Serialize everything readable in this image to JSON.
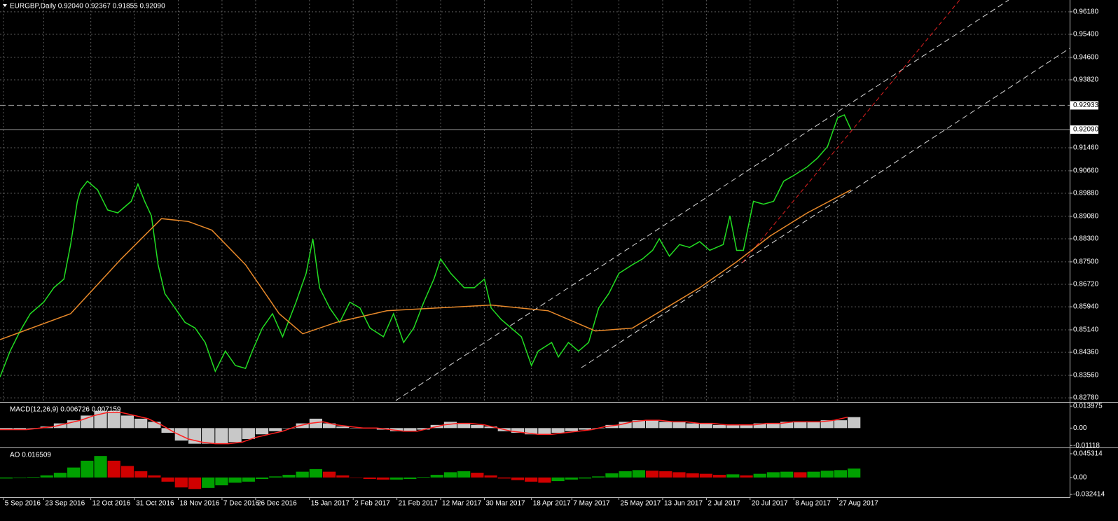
{
  "chart_data": [
    {
      "type": "line",
      "title": "EURGBP,Daily  0.92040 0.92367 0.91855 0.92090",
      "xlim": [
        0,
        318
      ],
      "ylim": [
        0.8266,
        0.9659
      ],
      "grid": true,
      "xticks": [
        {
          "value": 1,
          "label": "5 Sep 2016"
        },
        {
          "value": 13,
          "label": "23 Sep 2016"
        },
        {
          "value": 27,
          "label": "12 Oct 2016"
        },
        {
          "value": 40,
          "label": "31 Oct 2016"
        },
        {
          "value": 53,
          "label": "18 Nov 2016"
        },
        {
          "value": 66,
          "label": "7 Dec 2016"
        },
        {
          "value": 76,
          "label": "26 Dec 2016"
        },
        {
          "value": 92,
          "label": "15 Jan 2017"
        },
        {
          "value": 105,
          "label": "2 Feb 2017"
        },
        {
          "value": 118,
          "label": "21 Feb 2017"
        },
        {
          "value": 131,
          "label": "12 Mar 2017"
        },
        {
          "value": 144,
          "label": "30 Mar 2017"
        },
        {
          "value": 158,
          "label": "18 Apr 2017"
        },
        {
          "value": 170,
          "label": "7 May 2017"
        },
        {
          "value": 184,
          "label": "25 May 2017"
        },
        {
          "value": 197,
          "label": "13 Jun 2017"
        },
        {
          "value": 210,
          "label": "2 Jul 2017"
        },
        {
          "value": 223,
          "label": "20 Jul 2017"
        },
        {
          "value": 236,
          "label": "8 Aug 2017"
        },
        {
          "value": 249,
          "label": "27 Aug 2017"
        }
      ],
      "yticks": [
        {
          "value": 0.9618,
          "label": "0.96180"
        },
        {
          "value": 0.954,
          "label": "0.95400"
        },
        {
          "value": 0.946,
          "label": "0.94600"
        },
        {
          "value": 0.9382,
          "label": "0.93820"
        },
        {
          "value": 0.9146,
          "label": "0.91460"
        },
        {
          "value": 0.9066,
          "label": "0.90660"
        },
        {
          "value": 0.8988,
          "label": "0.89880"
        },
        {
          "value": 0.8908,
          "label": "0.89080"
        },
        {
          "value": 0.883,
          "label": "0.88300"
        },
        {
          "value": 0.875,
          "label": "0.87500"
        },
        {
          "value": 0.8672,
          "label": "0.86720"
        },
        {
          "value": 0.8594,
          "label": "0.85940"
        },
        {
          "value": 0.8514,
          "label": "0.85140"
        },
        {
          "value": 0.8436,
          "label": "0.84360"
        },
        {
          "value": 0.8356,
          "label": "0.83560"
        },
        {
          "value": 0.8278,
          "label": "0.82780"
        }
      ],
      "hlines": [
        {
          "value": 0.92933,
          "style": "dashed"
        },
        {
          "value": 0.9209,
          "label": "0.92090",
          "style": "solid"
        }
      ],
      "series": [
        {
          "type": "line",
          "color": "#22dd22",
          "x": [
            0,
            3,
            6,
            9,
            13,
            16,
            19,
            21,
            23,
            24,
            26,
            29,
            32,
            35,
            39,
            41,
            43,
            45,
            47,
            49,
            52,
            55,
            58,
            61,
            64,
            67,
            70,
            73,
            75,
            78,
            81,
            84,
            88,
            91,
            93,
            95,
            98,
            101,
            104,
            107,
            110,
            114,
            117,
            120,
            123,
            126,
            129,
            131,
            134,
            138,
            141,
            144,
            146,
            149,
            152,
            155,
            158,
            160,
            164,
            166,
            169,
            172,
            175,
            178,
            181,
            184,
            188,
            191,
            194,
            196,
            199,
            202,
            205,
            208,
            211,
            215,
            217,
            219,
            221,
            224,
            227,
            230,
            233,
            236,
            240,
            243,
            246,
            249,
            251,
            253
          ],
          "values": [
            0.835,
            0.844,
            0.851,
            0.857,
            0.861,
            0.866,
            0.869,
            0.881,
            0.896,
            0.9,
            0.903,
            0.9,
            0.893,
            0.892,
            0.896,
            0.902,
            0.896,
            0.891,
            0.874,
            0.864,
            0.859,
            0.854,
            0.852,
            0.847,
            0.837,
            0.844,
            0.839,
            0.838,
            0.844,
            0.852,
            0.857,
            0.849,
            0.861,
            0.871,
            0.883,
            0.866,
            0.859,
            0.854,
            0.861,
            0.859,
            0.852,
            0.849,
            0.857,
            0.847,
            0.852,
            0.861,
            0.869,
            0.876,
            0.871,
            0.866,
            0.866,
            0.869,
            0.859,
            0.855,
            0.852,
            0.849,
            0.839,
            0.844,
            0.847,
            0.842,
            0.847,
            0.844,
            0.847,
            0.859,
            0.864,
            0.871,
            0.874,
            0.876,
            0.879,
            0.883,
            0.877,
            0.881,
            0.88,
            0.882,
            0.879,
            0.881,
            0.891,
            0.879,
            0.879,
            0.896,
            0.895,
            0.896,
            0.903,
            0.905,
            0.908,
            0.911,
            0.915,
            0.925,
            0.926,
            0.9209
          ]
        },
        {
          "type": "line",
          "color": "#e8892a",
          "x": [
            0,
            21,
            36,
            48,
            56,
            63,
            73,
            83,
            90,
            100,
            115,
            146,
            163,
            177,
            188,
            198,
            208,
            219,
            229,
            240,
            253
          ],
          "values": [
            0.848,
            0.857,
            0.876,
            0.89,
            0.889,
            0.886,
            0.874,
            0.857,
            0.85,
            0.854,
            0.858,
            0.86,
            0.858,
            0.851,
            0.852,
            0.859,
            0.866,
            0.875,
            0.884,
            0.892,
            0.9
          ]
        }
      ]
    },
    {
      "type": "bar",
      "title": "MACD(12,26,9) 0.006726 0.007159",
      "xlim": [
        0,
        318
      ],
      "ylim": [
        -0.0115,
        0.0158
      ],
      "yticks": [
        0.013975,
        {
          "value": 0,
          "label": "0.00"
        },
        -0.01118
      ],
      "x": [
        0,
        4,
        8,
        12,
        16,
        20,
        24,
        28,
        32,
        36,
        40,
        44,
        48,
        52,
        56,
        60,
        64,
        68,
        72,
        76,
        80,
        84,
        88,
        92,
        96,
        100,
        104,
        108,
        112,
        116,
        120,
        124,
        128,
        132,
        136,
        140,
        144,
        148,
        152,
        156,
        160,
        164,
        168,
        172,
        176,
        180,
        184,
        188,
        192,
        196,
        200,
        204,
        208,
        212,
        216,
        220,
        224,
        228,
        232,
        236,
        240,
        244,
        248,
        252
      ],
      "series": [
        {
          "type": "bar",
          "color": "#c8c8c8",
          "values": [
            -0.001,
            -0.001,
            0.0,
            0.001,
            0.003,
            0.005,
            0.008,
            0.011,
            0.011,
            0.008,
            0.006,
            0.004,
            -0.003,
            -0.008,
            -0.01,
            -0.01,
            -0.01,
            -0.009,
            -0.007,
            -0.004,
            -0.002,
            0.0,
            0.003,
            0.006,
            0.003,
            0.001,
            0.0,
            0.0,
            -0.001,
            -0.002,
            -0.002,
            -0.001,
            0.002,
            0.004,
            0.003,
            0.002,
            0.001,
            -0.002,
            -0.003,
            -0.004,
            -0.004,
            -0.003,
            -0.002,
            -0.001,
            0.0,
            0.002,
            0.004,
            0.005,
            0.005,
            0.004,
            0.004,
            0.003,
            0.003,
            0.002,
            0.002,
            0.002,
            0.003,
            0.003,
            0.004,
            0.004,
            0.004,
            0.005,
            0.005,
            0.007
          ]
        },
        {
          "type": "line",
          "color": "#ff2020",
          "values": [
            -0.001,
            -0.001,
            -0.001,
            0.0,
            0.001,
            0.003,
            0.005,
            0.008,
            0.01,
            0.01,
            0.008,
            0.006,
            0.002,
            -0.003,
            -0.007,
            -0.009,
            -0.01,
            -0.01,
            -0.009,
            -0.006,
            -0.004,
            -0.002,
            0.001,
            0.003,
            0.004,
            0.002,
            0.001,
            0.0,
            0.0,
            -0.001,
            -0.002,
            -0.002,
            0.0,
            0.002,
            0.003,
            0.003,
            0.002,
            0.0,
            -0.002,
            -0.003,
            -0.004,
            -0.004,
            -0.003,
            -0.002,
            -0.001,
            0.001,
            0.002,
            0.004,
            0.005,
            0.005,
            0.004,
            0.004,
            0.003,
            0.003,
            0.002,
            0.002,
            0.002,
            0.003,
            0.003,
            0.004,
            0.004,
            0.004,
            0.005,
            0.007
          ]
        }
      ]
    },
    {
      "type": "bar",
      "title": "AO 0.016509",
      "xlim": [
        0,
        318
      ],
      "ylim": [
        -0.0363,
        0.0546
      ],
      "yticks": [
        0.045314,
        {
          "value": 0,
          "label": "0.00"
        },
        -0.032414
      ],
      "x": [
        0,
        4,
        8,
        12,
        16,
        20,
        24,
        28,
        32,
        36,
        40,
        44,
        48,
        52,
        56,
        60,
        64,
        68,
        72,
        76,
        80,
        84,
        88,
        92,
        96,
        100,
        104,
        108,
        112,
        116,
        120,
        124,
        128,
        132,
        136,
        140,
        144,
        148,
        152,
        156,
        160,
        164,
        168,
        172,
        176,
        180,
        184,
        188,
        192,
        196,
        200,
        204,
        208,
        212,
        216,
        220,
        224,
        228,
        232,
        236,
        240,
        244,
        248,
        252
      ],
      "series": [
        {
          "type": "bar",
          "color": "#00a000",
          "down_color": "#d00000",
          "values": [
            -0.002,
            -0.001,
            0.001,
            0.004,
            0.009,
            0.019,
            0.032,
            0.041,
            0.032,
            0.022,
            0.012,
            0.004,
            -0.008,
            -0.019,
            -0.022,
            -0.02,
            -0.015,
            -0.01,
            -0.008,
            -0.003,
            0.002,
            0.005,
            0.011,
            0.016,
            0.011,
            0.004,
            0.0,
            -0.003,
            -0.004,
            -0.004,
            -0.003,
            0.001,
            0.005,
            0.01,
            0.012,
            0.009,
            0.004,
            -0.002,
            -0.005,
            -0.008,
            -0.01,
            -0.007,
            -0.004,
            -0.002,
            0.002,
            0.008,
            0.012,
            0.014,
            0.013,
            0.012,
            0.01,
            0.008,
            0.007,
            0.005,
            0.006,
            0.004,
            0.007,
            0.01,
            0.011,
            0.01,
            0.011,
            0.013,
            0.014,
            0.017
          ]
        }
      ]
    }
  ]
}
